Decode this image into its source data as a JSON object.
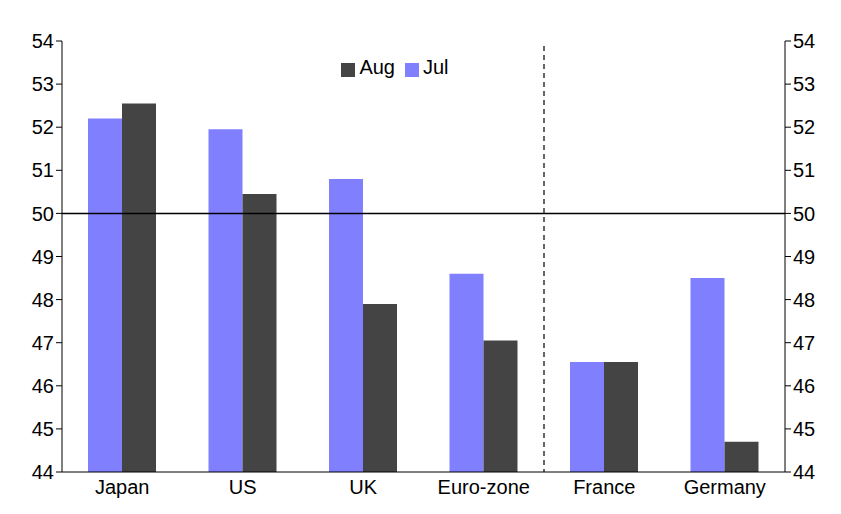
{
  "chart_data": {
    "type": "bar",
    "categories": [
      "Japan",
      "US",
      "UK",
      "Euro-zone",
      "France",
      "Germany"
    ],
    "series": [
      {
        "name": "Jul",
        "color": "#8080ff",
        "values": [
          52.2,
          51.95,
          50.8,
          48.6,
          46.55,
          48.5
        ]
      },
      {
        "name": "Aug",
        "color": "#444444",
        "values": [
          52.55,
          50.45,
          47.9,
          47.05,
          46.55,
          44.7
        ]
      }
    ],
    "ylim": [
      44,
      54
    ],
    "yticks": [
      44,
      45,
      46,
      47,
      48,
      49,
      50,
      51,
      52,
      53,
      54
    ],
    "reference_line": 50,
    "grid": false,
    "legend": "top"
  }
}
